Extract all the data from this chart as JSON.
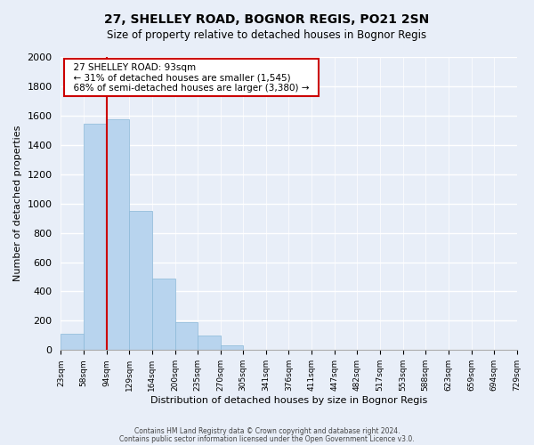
{
  "title": "27, SHELLEY ROAD, BOGNOR REGIS, PO21 2SN",
  "subtitle": "Size of property relative to detached houses in Bognor Regis",
  "xlabel": "Distribution of detached houses by size in Bognor Regis",
  "ylabel": "Number of detached properties",
  "bar_labels": [
    "23sqm",
    "58sqm",
    "94sqm",
    "129sqm",
    "164sqm",
    "200sqm",
    "235sqm",
    "270sqm",
    "305sqm",
    "341sqm",
    "376sqm",
    "411sqm",
    "447sqm",
    "482sqm",
    "517sqm",
    "553sqm",
    "588sqm",
    "623sqm",
    "659sqm",
    "694sqm",
    "729sqm"
  ],
  "bar_values": [
    110,
    1545,
    1575,
    950,
    490,
    190,
    100,
    35,
    0,
    0,
    0,
    0,
    0,
    0,
    0,
    0,
    0,
    0,
    0,
    0,
    0
  ],
  "bar_color": "#b8d4ee",
  "highlight_line_color": "#cc0000",
  "annotation_title": "27 SHELLEY ROAD: 93sqm",
  "annotation_line1": "← 31% of detached houses are smaller (1,545)",
  "annotation_line2": "68% of semi-detached houses are larger (3,380) →",
  "annotation_box_color": "#ffffff",
  "annotation_box_edge": "#cc0000",
  "ylim": [
    0,
    2000
  ],
  "yticks": [
    0,
    200,
    400,
    600,
    800,
    1000,
    1200,
    1400,
    1600,
    1800,
    2000
  ],
  "footer1": "Contains HM Land Registry data © Crown copyright and database right 2024.",
  "footer2": "Contains public sector information licensed under the Open Government Licence v3.0.",
  "background_color": "#e8eef8",
  "grid_color": "#ffffff",
  "bin_edges": [
    23,
    58,
    94,
    129,
    164,
    200,
    235,
    270,
    305,
    341,
    376,
    411,
    447,
    482,
    517,
    553,
    588,
    623,
    659,
    694,
    729
  ]
}
